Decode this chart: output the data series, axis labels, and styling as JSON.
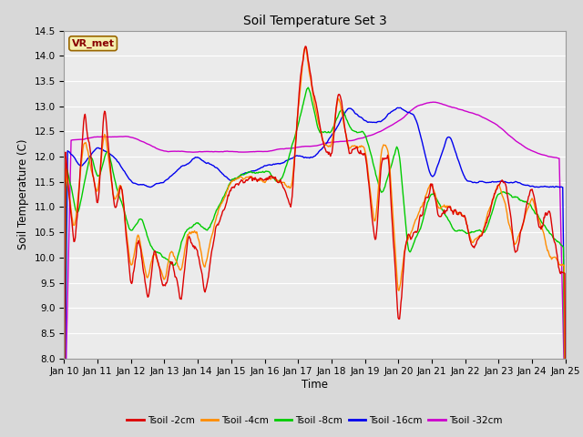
{
  "title": "Soil Temperature Set 3",
  "xlabel": "Time",
  "ylabel": "Soil Temperature (C)",
  "ylim": [
    8.0,
    14.5
  ],
  "yticks": [
    8.0,
    8.5,
    9.0,
    9.5,
    10.0,
    10.5,
    11.0,
    11.5,
    12.0,
    12.5,
    13.0,
    13.5,
    14.0,
    14.5
  ],
  "xtick_labels": [
    "Jan 10",
    "Jan 11",
    "Jan 12",
    "Jan 13",
    "Jan 14",
    "Jan 15",
    "Jan 16",
    "Jan 17",
    "Jan 18",
    "Jan 19",
    "Jan 20",
    "Jan 21",
    "Jan 22",
    "Jan 23",
    "Jan 24",
    "Jan 25"
  ],
  "colors": {
    "2cm": "#dd0000",
    "4cm": "#ff8c00",
    "8cm": "#00cc00",
    "16cm": "#0000ee",
    "32cm": "#cc00cc"
  },
  "labels": {
    "2cm": "Tsoil -2cm",
    "4cm": "Tsoil -4cm",
    "8cm": "Tsoil -8cm",
    "16cm": "Tsoil -16cm",
    "32cm": "Tsoil -32cm"
  },
  "watermark": "VR_met",
  "bg_color": "#d8d8d8",
  "plot_bg": "#ebebeb",
  "grid_color": "#ffffff",
  "linewidth": 1.0
}
